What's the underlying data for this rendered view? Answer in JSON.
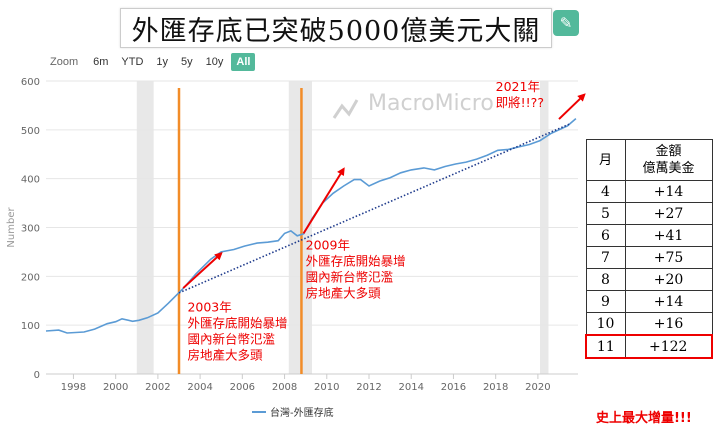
{
  "title": "外匯存底已突破5000億美元大關",
  "zoom": {
    "label": "Zoom",
    "options": [
      "6m",
      "YTD",
      "1y",
      "5y",
      "10y",
      "All"
    ],
    "active": "All"
  },
  "watermark": "MacroMicro",
  "chart_data": {
    "type": "line",
    "ylabel": "Number",
    "ylim": [
      0,
      600
    ],
    "yticks": [
      0,
      100,
      200,
      300,
      400,
      500,
      600
    ],
    "xlim": [
      1996.7,
      2021.9
    ],
    "xticks": [
      1998,
      2000,
      2002,
      2004,
      2006,
      2008,
      2010,
      2012,
      2014,
      2016,
      2018,
      2020
    ],
    "legend": {
      "label": "台灣-外匯存底",
      "position": "bottom-center",
      "color": "#5b9bd5"
    },
    "series": [
      {
        "name": "台灣-外匯存底",
        "color": "#5b9bd5",
        "points": [
          [
            1996.7,
            88
          ],
          [
            1997.3,
            90
          ],
          [
            1997.7,
            84
          ],
          [
            1998.5,
            86
          ],
          [
            1999.0,
            92
          ],
          [
            1999.6,
            103
          ],
          [
            2000.0,
            107
          ],
          [
            2000.3,
            113
          ],
          [
            2000.8,
            108
          ],
          [
            2001.1,
            110
          ],
          [
            2001.5,
            115
          ],
          [
            2002.0,
            125
          ],
          [
            2002.5,
            145
          ],
          [
            2002.8,
            158
          ],
          [
            2003.2,
            175
          ],
          [
            2003.8,
            205
          ],
          [
            2004.5,
            235
          ],
          [
            2005.0,
            250
          ],
          [
            2005.6,
            255
          ],
          [
            2006.1,
            262
          ],
          [
            2006.7,
            268
          ],
          [
            2007.2,
            270
          ],
          [
            2007.7,
            273
          ],
          [
            2008.0,
            288
          ],
          [
            2008.3,
            293
          ],
          [
            2008.6,
            283
          ],
          [
            2008.9,
            287
          ],
          [
            2009.3,
            318
          ],
          [
            2009.8,
            350
          ],
          [
            2010.3,
            370
          ],
          [
            2010.8,
            385
          ],
          [
            2011.3,
            398
          ],
          [
            2011.6,
            398
          ],
          [
            2012.0,
            385
          ],
          [
            2012.5,
            395
          ],
          [
            2013.0,
            402
          ],
          [
            2013.5,
            412
          ],
          [
            2014.0,
            418
          ],
          [
            2014.6,
            422
          ],
          [
            2015.1,
            418
          ],
          [
            2015.6,
            425
          ],
          [
            2016.1,
            430
          ],
          [
            2016.6,
            434
          ],
          [
            2017.1,
            440
          ],
          [
            2017.6,
            448
          ],
          [
            2018.1,
            458
          ],
          [
            2018.6,
            460
          ],
          [
            2019.1,
            465
          ],
          [
            2019.6,
            470
          ],
          [
            2020.1,
            478
          ],
          [
            2020.6,
            492
          ],
          [
            2021.0,
            500
          ],
          [
            2021.4,
            508
          ],
          [
            2021.8,
            523
          ]
        ]
      },
      {
        "name": "trend",
        "style": "dotted",
        "color": "#1f3b8c",
        "points": [
          [
            2003.0,
            166
          ],
          [
            2021.5,
            512
          ]
        ]
      }
    ],
    "shaded_periods": [
      [
        2001.0,
        2001.8
      ],
      [
        2008.2,
        2009.3
      ],
      [
        2020.1,
        2020.5
      ]
    ],
    "vertical_markers": [
      2003.0,
      2008.8
    ],
    "arrows": [
      [
        [
          2003.2,
          176
        ],
        [
          2005.0,
          247
        ]
      ],
      [
        [
          2008.9,
          288
        ],
        [
          2010.8,
          420
        ]
      ],
      [
        [
          2021.0,
          522
        ],
        [
          2022.2,
          572
        ]
      ]
    ],
    "annotations": [
      {
        "lines": [
          "2003年",
          "外匯存底開始暴增",
          "國內新台幣氾濫",
          "房地產大多頭"
        ],
        "x": 2003.4,
        "y": 128
      },
      {
        "lines": [
          "2009年",
          "外匯存底開始暴增",
          "國內新台幣氾濫",
          "房地產大多頭"
        ],
        "x": 2009.0,
        "y": 255
      },
      {
        "lines": [
          "2021年",
          "即將!!??"
        ],
        "x": 2018.0,
        "y": 580
      }
    ]
  },
  "table": {
    "headers": [
      "月",
      "金額\n億萬美金"
    ],
    "header_month": "月",
    "header_amount": "金額",
    "header_unit": "億萬美金",
    "rows": [
      {
        "month": "4",
        "amount": "+14"
      },
      {
        "month": "5",
        "amount": "+27"
      },
      {
        "month": "6",
        "amount": "+41"
      },
      {
        "month": "7",
        "amount": "+75"
      },
      {
        "month": "8",
        "amount": "+20"
      },
      {
        "month": "9",
        "amount": "+14"
      },
      {
        "month": "10",
        "amount": "+16"
      },
      {
        "month": "11",
        "amount": "+122",
        "highlight": true
      }
    ]
  },
  "footnote": "史上最大增量!!!"
}
